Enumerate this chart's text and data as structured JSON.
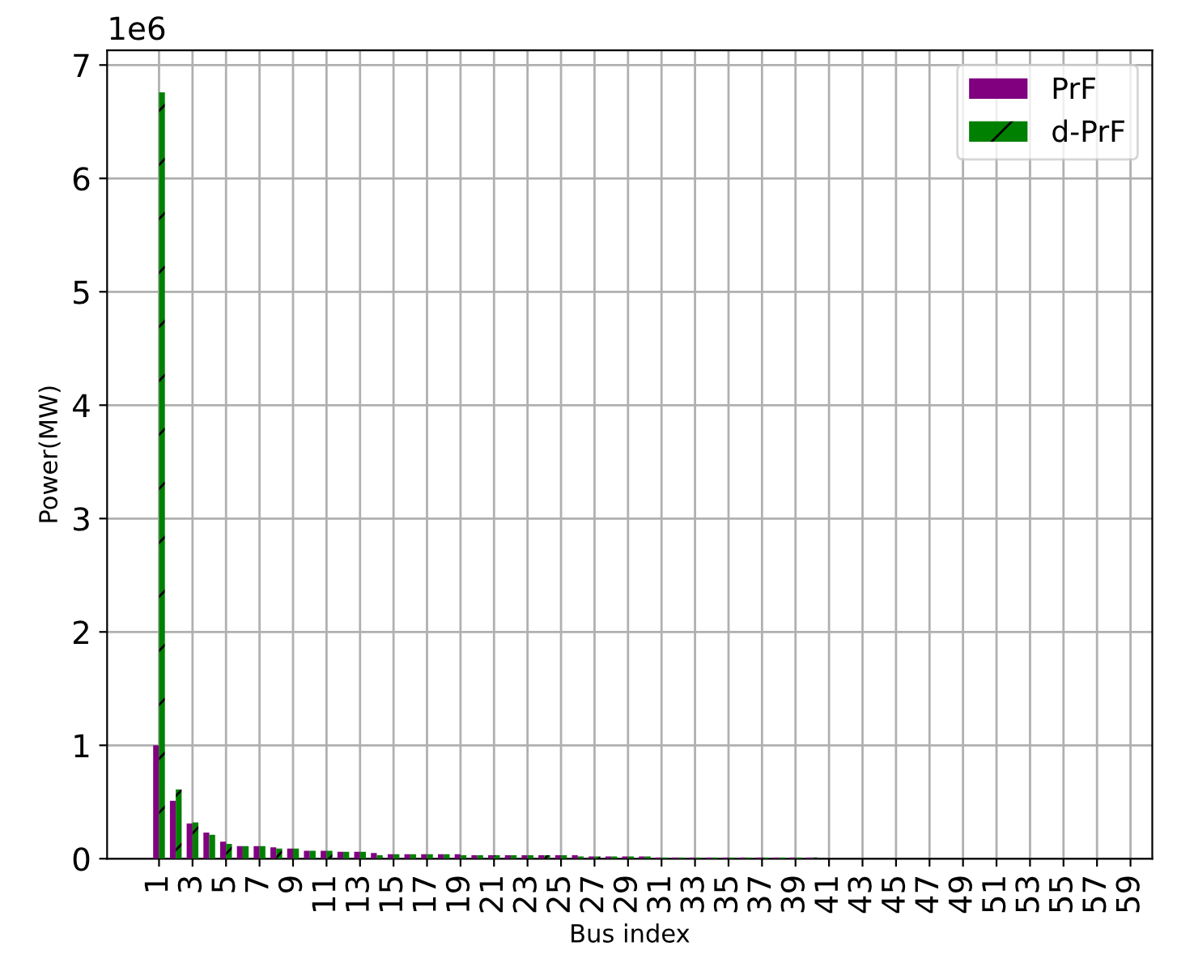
{
  "chart_data": {
    "type": "bar",
    "xlabel": "Bus index",
    "ylabel": "Power(MW)",
    "categories": [
      "1",
      null,
      "3",
      null,
      "5",
      null,
      "7",
      null,
      "9",
      null,
      "11",
      null,
      "13",
      null,
      "15",
      null,
      "17",
      null,
      "19",
      null,
      "21",
      null,
      "23",
      null,
      "25",
      null,
      "27",
      null,
      "29",
      null,
      "31",
      null,
      "33",
      null,
      "35",
      null,
      "37",
      null,
      "39",
      null,
      "41",
      null,
      "43",
      null,
      "45",
      null,
      "47",
      null,
      "49",
      null,
      "51",
      null,
      "53",
      null,
      "55",
      null,
      "57",
      null,
      "59",
      null
    ],
    "series": [
      {
        "name": "PrF",
        "color": "#800080",
        "values": [
          1.0,
          0.51,
          0.31,
          0.23,
          0.15,
          0.11,
          0.11,
          0.1,
          0.09,
          0.07,
          0.07,
          0.06,
          0.06,
          0.05,
          0.04,
          0.04,
          0.04,
          0.04,
          0.04,
          0.03,
          0.03,
          0.03,
          0.03,
          0.03,
          0.03,
          0.03,
          0.02,
          0.02,
          0.02,
          0.02,
          0.01,
          0.01,
          0.01,
          0.01,
          0.01,
          0.01,
          0.01,
          0.01,
          0.01,
          0.01,
          0,
          0,
          0,
          0,
          0,
          0,
          0,
          0,
          0,
          0,
          0,
          0,
          0,
          0,
          0,
          0,
          0,
          0,
          0,
          0
        ]
      },
      {
        "name": "d-PrF",
        "color": "#008000",
        "values": [
          6.76,
          0.61,
          0.32,
          0.21,
          0.13,
          0.11,
          0.11,
          0.09,
          0.09,
          0.07,
          0.07,
          0.06,
          0.06,
          0.03,
          0.04,
          0.04,
          0.04,
          0.04,
          0.03,
          0.03,
          0.03,
          0.03,
          0.03,
          0.03,
          0.03,
          0.02,
          0.02,
          0.02,
          0.02,
          0.02,
          0.01,
          0.01,
          0.01,
          0.01,
          0.01,
          0.01,
          0.01,
          0.01,
          0.01,
          0.01,
          0,
          0,
          0,
          0,
          0,
          0,
          0,
          0,
          0,
          0,
          0,
          0,
          0,
          0,
          0,
          0,
          0,
          0,
          0,
          0
        ]
      }
    ],
    "ylim": [
      0,
      7.13
    ],
    "yticks": [
      0,
      1,
      2,
      3,
      4,
      5,
      6,
      7
    ],
    "annotations": [
      "1e6"
    ],
    "grid": true,
    "legend": "top right"
  }
}
